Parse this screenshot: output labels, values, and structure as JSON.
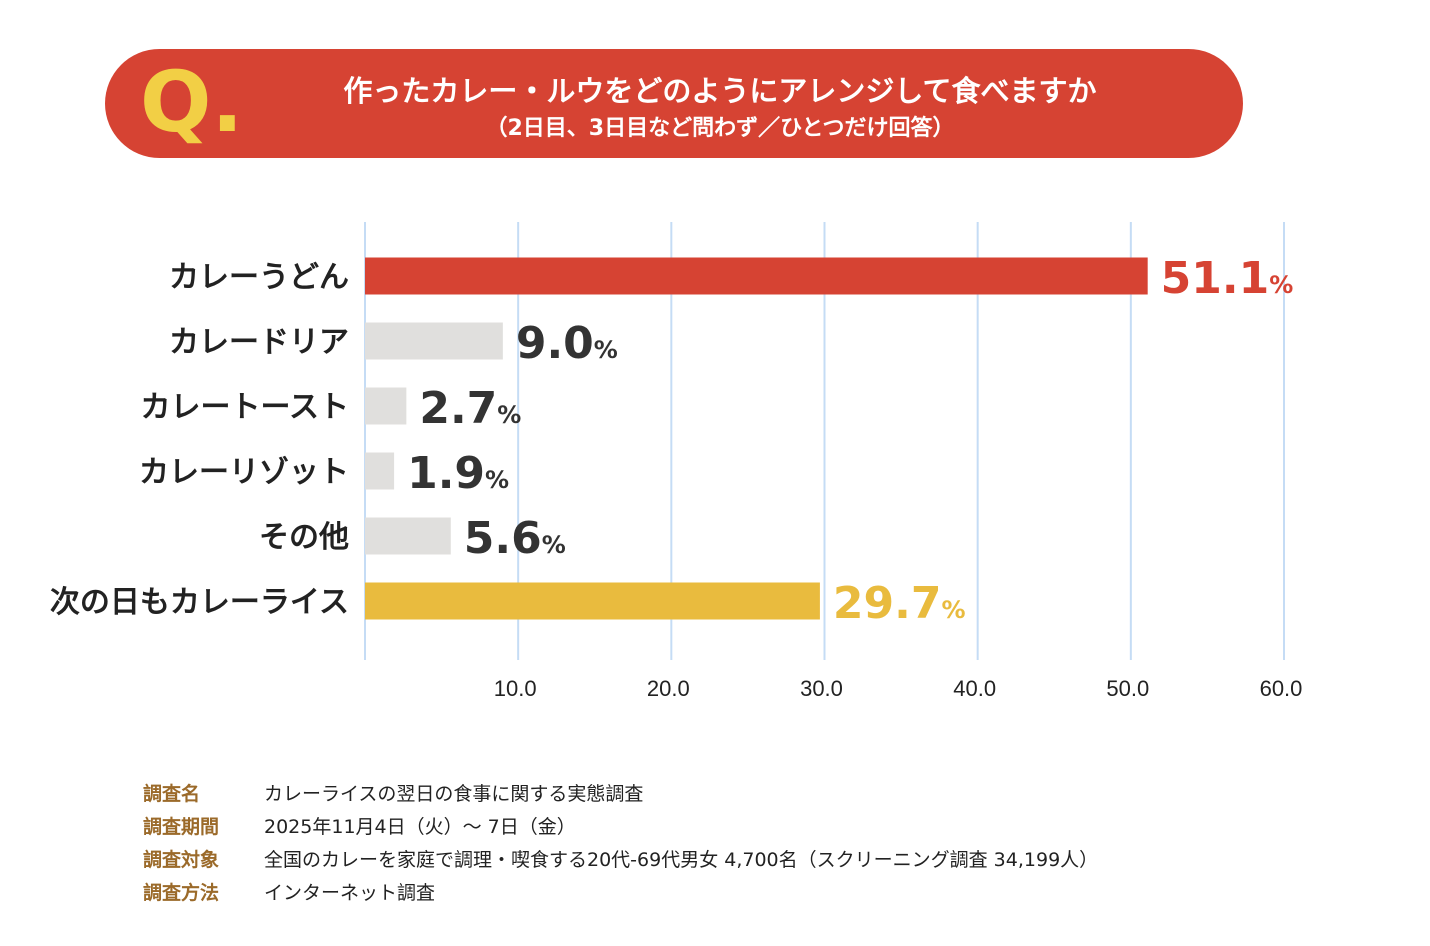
{
  "question": {
    "marker": "Q.",
    "title": "作ったカレー・ルウをどのようにアレンジして食べますか",
    "subtitle": "（2日目、3日目など問わず／ひとつだけ回答）"
  },
  "chart_data": {
    "type": "bar",
    "orientation": "horizontal",
    "categories": [
      "カレーうどん",
      "カレードリア",
      "カレートースト",
      "カレーリゾット",
      "その他",
      "次の日もカレーライス"
    ],
    "values": [
      51.1,
      9.0,
      2.7,
      1.9,
      5.6,
      29.7
    ],
    "value_labels": [
      "51.1",
      "9.0",
      "2.7",
      "1.9",
      "5.6",
      "29.7"
    ],
    "unit": "%",
    "bar_colors": [
      "#d64333",
      "#e0dfdd",
      "#e0dfdd",
      "#e0dfdd",
      "#e0dfdd",
      "#e9bb3e"
    ],
    "label_colors": [
      "#d64333",
      "#333333",
      "#333333",
      "#333333",
      "#333333",
      "#e9bb3e"
    ],
    "xlim": [
      0,
      60
    ],
    "x_ticks": [
      "10.0",
      "20.0",
      "30.0",
      "40.0",
      "50.0",
      "60.0"
    ],
    "grid": true,
    "grid_color": "#c5dcf5"
  },
  "survey": [
    {
      "key": "調査名",
      "value": "カレーライスの翌日の食事に関する実態調査"
    },
    {
      "key": "調査期間",
      "value": "2025年11月4日（火）～ 7日（金）"
    },
    {
      "key": "調査対象",
      "value": "全国のカレーを家庭で調理・喫食する20代-69代男女 4,700名（スクリーニング調査 34,199人）"
    },
    {
      "key": "調査方法",
      "value": "インターネット調査"
    }
  ]
}
